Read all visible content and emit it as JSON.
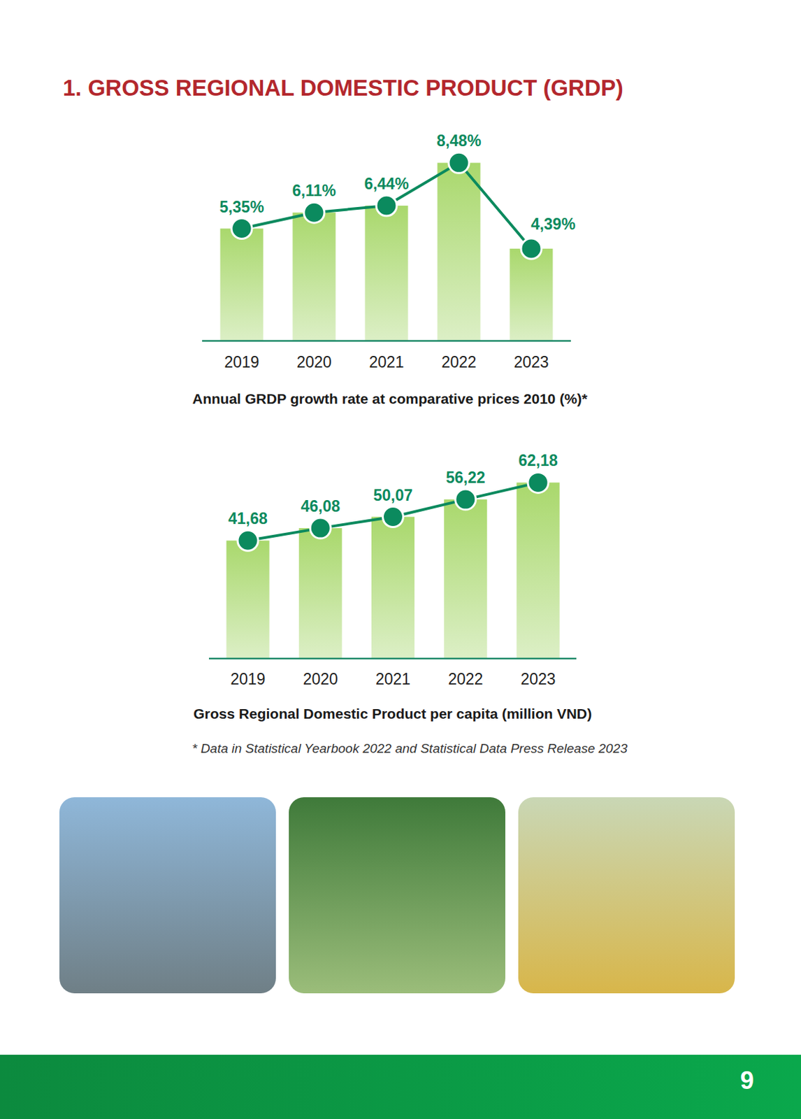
{
  "heading": "1. GROSS REGIONAL DOMESTIC PRODUCT (GRDP)",
  "chart_data": [
    {
      "type": "bar",
      "title": "Annual GRDP growth rate at comparative prices 2010 (%)*",
      "categories": [
        "2019",
        "2020",
        "2021",
        "2022",
        "2023"
      ],
      "values": [
        5.35,
        6.11,
        6.44,
        8.48,
        4.39
      ],
      "value_labels": [
        "5,35%",
        "6,11%",
        "6,44%",
        "8,48%",
        "4,39%"
      ],
      "color": "#0b8a5e",
      "marker": "circle",
      "line_style": "solid",
      "data_labels": true,
      "tick_labels": "x",
      "grid": false,
      "ylim": [
        0,
        9.5
      ]
    },
    {
      "type": "bar",
      "title": "Gross Regional Domestic Product per capita (million VND)",
      "categories": [
        "2019",
        "2020",
        "2021",
        "2022",
        "2023"
      ],
      "values": [
        41.68,
        46.08,
        50.07,
        56.22,
        62.18
      ],
      "value_labels": [
        "41,68",
        "46,08",
        "50,07",
        "56,22",
        "62,18"
      ],
      "color": "#0b8a5e",
      "marker": "circle",
      "line_style": "solid",
      "data_labels": true,
      "tick_labels": "x",
      "grid": false,
      "ylim": [
        0,
        70
      ]
    }
  ],
  "footnote": "* Data in Statistical Yearbook 2022 and Statistical Data Press Release 2023",
  "page_number": 9
}
